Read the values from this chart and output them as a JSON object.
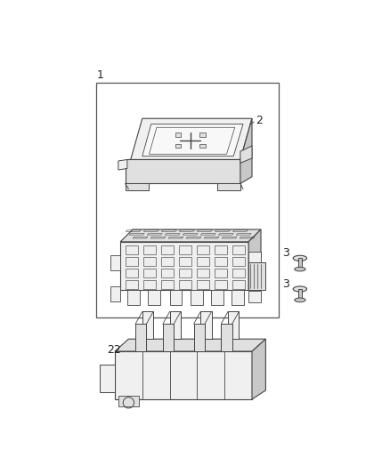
{
  "background_color": "#ffffff",
  "fig_width": 4.38,
  "fig_height": 5.33,
  "dpi": 100,
  "line_color": "#444444",
  "light_fill": "#f0f0f0",
  "mid_fill": "#e0e0e0",
  "dark_fill": "#c8c8c8",
  "label_color": "#222222",
  "box_line": "#666666"
}
